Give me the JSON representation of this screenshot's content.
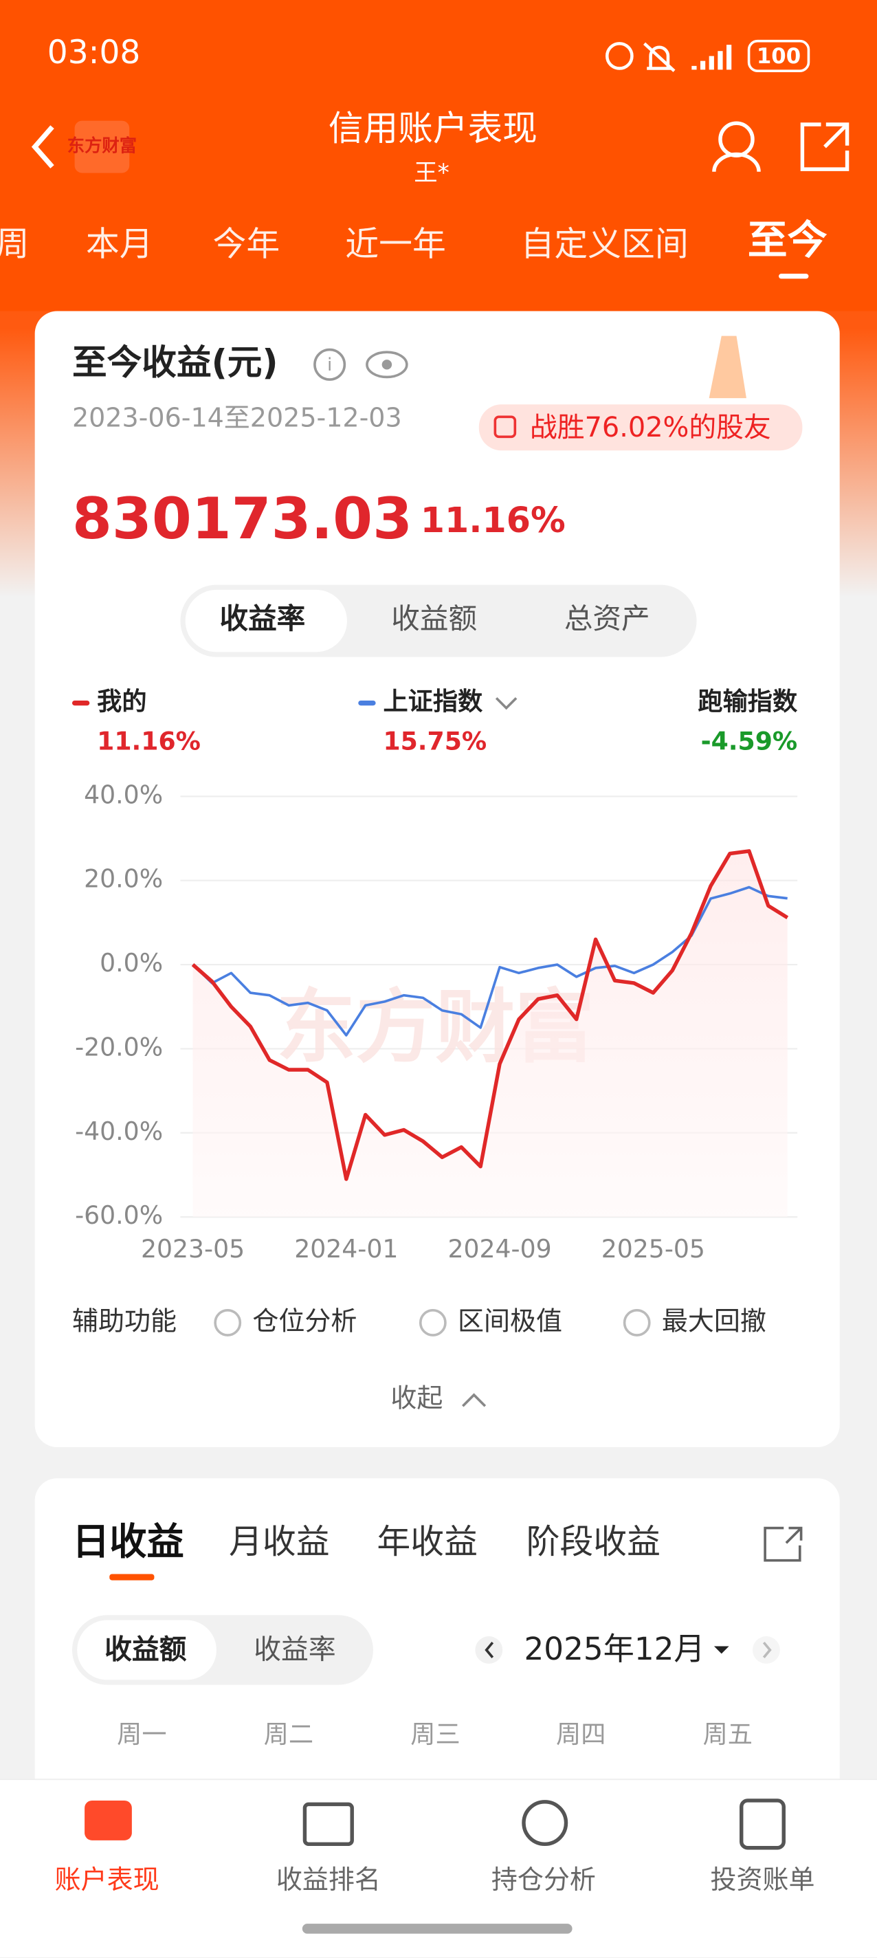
{
  "status": {
    "time": "03:08",
    "battery": "100"
  },
  "header": {
    "logo": "东方财富",
    "title": "信用账户表现",
    "subtitle": "王*"
  },
  "period_tabs": [
    "周",
    "本月",
    "今年",
    "近一年",
    "自定义区间",
    "至今"
  ],
  "summary": {
    "title": "至今收益(元)",
    "date_range": "2023-06-14至2025-12-03",
    "badge": "战胜76.02%的股友",
    "amount": "830173.03",
    "rate": "11.16%"
  },
  "metric_tabs": [
    "收益率",
    "收益额",
    "总资产"
  ],
  "legend": [
    {
      "name": "我的",
      "value": "11.16%"
    },
    {
      "name": "上证指数",
      "value": "15.75%"
    },
    {
      "name": "跑输指数",
      "value": "-4.59%"
    }
  ],
  "chart_data": {
    "type": "line",
    "watermark": "东方财富",
    "x": [
      "2023-05",
      "2023-06",
      "2023-07",
      "2023-08",
      "2023-09",
      "2023-10",
      "2023-11",
      "2023-12",
      "2024-01",
      "2024-02",
      "2024-03",
      "2024-04",
      "2024-05",
      "2024-06",
      "2024-07",
      "2024-08",
      "2024-09",
      "2024-10",
      "2024-11",
      "2024-12",
      "2025-01",
      "2025-02",
      "2025-03",
      "2025-04",
      "2025-05",
      "2025-06",
      "2025-07",
      "2025-08",
      "2025-09",
      "2025-10",
      "2025-11",
      "2025-12"
    ],
    "xlim": [
      "2023-05",
      "2025-12"
    ],
    "xticks": [
      "2023-05",
      "2024-01",
      "2024-09",
      "2025-05"
    ],
    "ylim": [
      -60,
      40
    ],
    "yticks": [
      {
        "value": -60,
        "label": "-60.0%"
      },
      {
        "value": -40,
        "label": "-40.0%"
      },
      {
        "value": -20,
        "label": "-20.0%"
      },
      {
        "value": 0,
        "label": "0.0%"
      },
      {
        "value": 20,
        "label": "20.0%"
      },
      {
        "value": 40,
        "label": "40.0%"
      }
    ],
    "grid": true,
    "series": [
      {
        "name": "我的",
        "color": "#e02828",
        "values": [
          0,
          -4,
          -10,
          -14.7,
          -22.7,
          -25,
          -25,
          -28,
          -51,
          -35.7,
          -40.5,
          -39.3,
          -42,
          -45.8,
          -43.4,
          -48,
          -23.6,
          -13,
          -8.2,
          -7.3,
          -13,
          6,
          -3.8,
          -4.4,
          -6.7,
          -1.4,
          7.5,
          18.7,
          26.4,
          27,
          14,
          11.16
        ]
      },
      {
        "name": "上证指数",
        "color": "#4a7fe0",
        "values": [
          0,
          -4.4,
          -2,
          -6.7,
          -7.3,
          -9.7,
          -9.1,
          -10.9,
          -16.8,
          -9.7,
          -8.8,
          -7.3,
          -7.9,
          -10.9,
          -11.8,
          -15,
          -0.6,
          -2,
          -0.8,
          0,
          -2.9,
          -0.8,
          -0.3,
          -2,
          0,
          3,
          6.9,
          15.7,
          16.9,
          18.4,
          16.3,
          15.75
        ]
      }
    ]
  },
  "aux": {
    "label": "辅助功能",
    "options": [
      "仓位分析",
      "区间极值",
      "最大回撤"
    ],
    "collapse": "收起"
  },
  "daily": {
    "tabs": [
      "日收益",
      "月收益",
      "年收益",
      "阶段收益"
    ],
    "toggle": [
      "收益额",
      "收益率"
    ],
    "month": "2025年12月",
    "weekdays": [
      "周一",
      "周二",
      "周三",
      "周四",
      "周五"
    ]
  },
  "nav": [
    "账户表现",
    "收益排名",
    "持仓分析",
    "投资账单"
  ]
}
